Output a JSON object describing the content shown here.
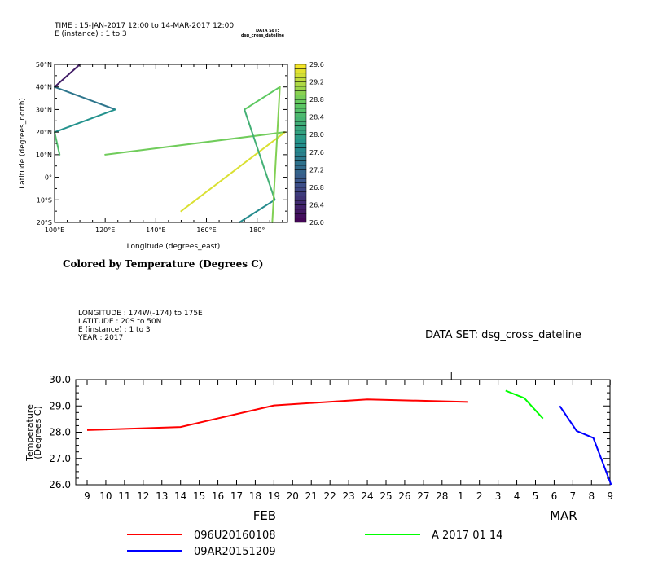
{
  "chart_data": [
    {
      "type": "line",
      "header": {
        "time": "TIME : 15-JAN-2017 12:00 to 14-MAR-2017 12:00",
        "instance": "E (instance) : 1 to 3",
        "dataset_line1": "DATA SET:",
        "dataset_line2": "dsg_cross_dateline"
      },
      "xlabel": "Longitude (degrees_east)",
      "ylabel": "Latitude (degrees_north)",
      "xlim": [
        100,
        192
      ],
      "ylim": [
        -20,
        50
      ],
      "x_ticks": [
        {
          "v": 100,
          "label": "100°E"
        },
        {
          "v": 120,
          "label": "120°E"
        },
        {
          "v": 140,
          "label": "140°E"
        },
        {
          "v": 160,
          "label": "160°E"
        },
        {
          "v": 180,
          "label": "180°"
        }
      ],
      "y_ticks": [
        {
          "v": 50,
          "label": "50°N"
        },
        {
          "v": 40,
          "label": "40°N"
        },
        {
          "v": 30,
          "label": "30°N"
        },
        {
          "v": 20,
          "label": "20°N"
        },
        {
          "v": 10,
          "label": "10°N"
        },
        {
          "v": 0,
          "label": "0°"
        },
        {
          "v": -10,
          "label": "10°S"
        },
        {
          "v": -20,
          "label": "20°S"
        }
      ],
      "caption": "Colored by Temperature (Degrees C)",
      "colorbar": {
        "min": 26.0,
        "max": 29.6,
        "labels": [
          "29.6",
          "29.2",
          "28.8",
          "28.4",
          "28.0",
          "27.6",
          "27.2",
          "26.8",
          "26.4",
          "26.0"
        ]
      },
      "segments": [
        {
          "x1": 110,
          "y1": 50,
          "x2": 100,
          "y2": 40,
          "t": 26.3
        },
        {
          "x1": 100,
          "y1": 40,
          "x2": 124,
          "y2": 30,
          "t": 27.4
        },
        {
          "x1": 124,
          "y1": 30,
          "x2": 100,
          "y2": 20,
          "t": 27.8
        },
        {
          "x1": 100,
          "y1": 20,
          "x2": 102,
          "y2": 10,
          "t": 28.5
        },
        {
          "x1": 120,
          "y1": 10,
          "x2": 191,
          "y2": 20,
          "t": 28.8
        },
        {
          "x1": 191,
          "y1": 20,
          "x2": 150,
          "y2": -15,
          "t": 29.4
        },
        {
          "x1": 175,
          "y1": 30,
          "x2": 189,
          "y2": 40,
          "t": 28.7
        },
        {
          "x1": 175,
          "y1": 30,
          "x2": 187,
          "y2": -10,
          "t": 28.3
        },
        {
          "x1": 187,
          "y1": -10,
          "x2": 173,
          "y2": -20,
          "t": 27.7
        },
        {
          "x1": 189,
          "y1": 40,
          "x2": 186,
          "y2": -20,
          "t": 28.9
        }
      ]
    },
    {
      "type": "line",
      "header": {
        "longitude": "LONGITUDE : 174W(-174) to 175E",
        "latitude": "LATITUDE : 20S to 50N",
        "instance": "E (instance) : 1 to 3",
        "year": "YEAR : 2017",
        "dataset": "DATA SET: dsg_cross_dateline"
      },
      "ylabel_line1": "Temperature",
      "ylabel_line2": "(Degrees C)",
      "ylim": [
        26.0,
        30.0
      ],
      "y_ticks": [
        "26.0",
        "27.0",
        "28.0",
        "29.0",
        "30.0"
      ],
      "x_day_ticks": [
        "9",
        "10",
        "11",
        "12",
        "13",
        "14",
        "15",
        "16",
        "17",
        "18",
        "19",
        "20",
        "21",
        "22",
        "23",
        "24",
        "25",
        "26",
        "27",
        "28",
        "1",
        "2",
        "3",
        "4",
        "5",
        "6",
        "7",
        "8",
        "9"
      ],
      "month_labels": [
        {
          "label": "FEB",
          "at": 9.5
        },
        {
          "label": "MAR",
          "at": 25.5
        }
      ],
      "series": [
        {
          "name": "096U20160108",
          "color": "#ff0000",
          "points": [
            [
              0,
              28.08
            ],
            [
              5,
              28.2
            ],
            [
              10,
              29.02
            ],
            [
              15,
              29.25
            ],
            [
              20.4,
              29.15
            ]
          ]
        },
        {
          "name": "A 2017 01 14",
          "color": "#00ff00",
          "points": [
            [
              22.4,
              29.58
            ],
            [
              23.4,
              29.3
            ],
            [
              24.4,
              28.52
            ]
          ]
        },
        {
          "name": "09AR20151209",
          "color": "#0000ff",
          "points": [
            [
              25.3,
              29.0
            ],
            [
              26.2,
              28.05
            ],
            [
              27.1,
              27.78
            ],
            [
              28.05,
              26.0
            ]
          ]
        }
      ]
    }
  ]
}
